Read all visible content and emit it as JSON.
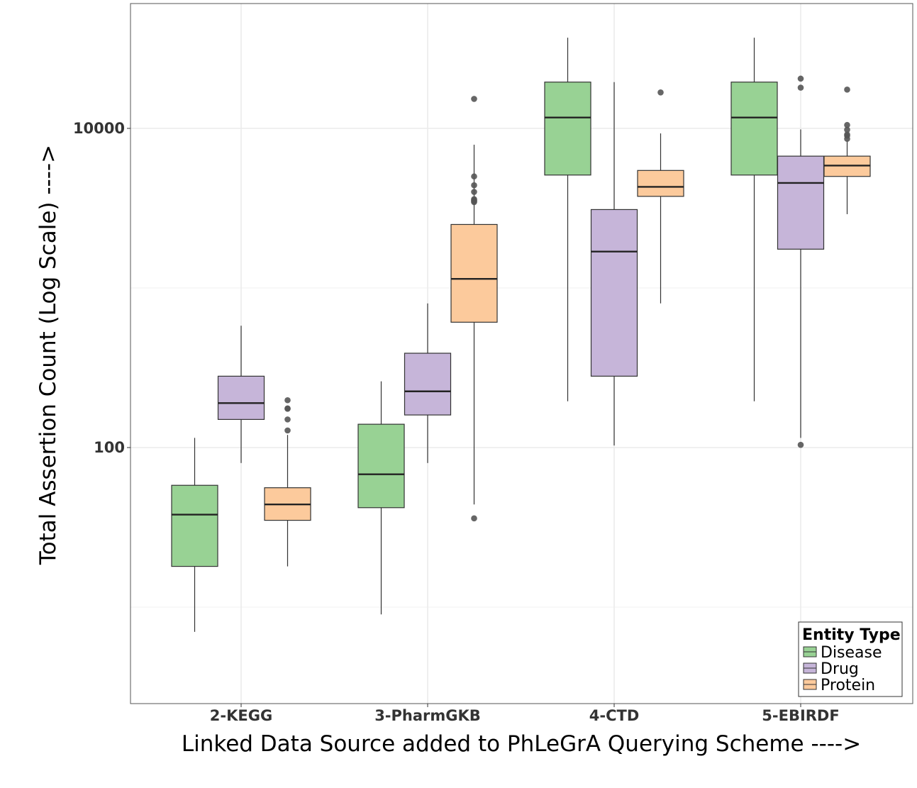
{
  "chart_data": {
    "type": "box",
    "title": "",
    "xlabel": "Linked Data Source added to PhLeGrA Querying Scheme ---->",
    "ylabel": "Total Assertion Count (Log Scale) ---->",
    "y_scale": "log10",
    "ylim": [
      5,
      50000
    ],
    "y_ticks": [
      100,
      10000
    ],
    "y_tick_labels": [
      "100",
      "10000"
    ],
    "grid": true,
    "categories": [
      "2-KEGG",
      "3-PharmGKB",
      "4-CTD",
      "5-EBIRDF"
    ],
    "legend": {
      "title": "Entity Type",
      "position": "bottom-right",
      "entries": [
        "Disease",
        "Drug",
        "Protein"
      ]
    },
    "colors": {
      "Disease": "#98d294",
      "Drug": "#c6b5d9",
      "Protein": "#fcca9c",
      "outline": "#333333",
      "grid": "#ebebeb",
      "outlier": "#555555"
    },
    "series": [
      {
        "name": "Disease",
        "boxes": [
          {
            "category": "2-KEGG",
            "min": 7,
            "q1": 18,
            "median": 38,
            "q3": 58,
            "max": 115,
            "outliers": []
          },
          {
            "category": "3-PharmGKB",
            "min": 9,
            "q1": 42,
            "median": 68,
            "q3": 140,
            "max": 260,
            "outliers": []
          },
          {
            "category": "4-CTD",
            "min": 195,
            "q1": 5100,
            "median": 11700,
            "q3": 19500,
            "max": 37000,
            "outliers": []
          },
          {
            "category": "5-EBIRDF",
            "min": 195,
            "q1": 5100,
            "median": 11700,
            "q3": 19500,
            "max": 37000,
            "outliers": []
          }
        ]
      },
      {
        "name": "Drug",
        "boxes": [
          {
            "category": "2-KEGG",
            "min": 80,
            "q1": 150,
            "median": 190,
            "q3": 280,
            "max": 580,
            "outliers": []
          },
          {
            "category": "3-PharmGKB",
            "min": 80,
            "q1": 160,
            "median": 225,
            "q3": 390,
            "max": 800,
            "outliers": []
          },
          {
            "category": "4-CTD",
            "min": 103,
            "q1": 280,
            "median": 1690,
            "q3": 3100,
            "max": 19500,
            "outliers": []
          },
          {
            "category": "5-EBIRDF",
            "min": 115,
            "q1": 1750,
            "median": 4550,
            "q3": 6700,
            "max": 9850,
            "outliers": [
              104,
              18000,
              20500
            ]
          }
        ]
      },
      {
        "name": "Protein",
        "boxes": [
          {
            "category": "2-KEGG",
            "min": 18,
            "q1": 35,
            "median": 44,
            "q3": 56,
            "max": 120,
            "outliers": [
              128,
              150,
              175,
              176,
              198
            ]
          },
          {
            "category": "3-PharmGKB",
            "min": 44,
            "q1": 610,
            "median": 1140,
            "q3": 2500,
            "max": 7900,
            "outliers": [
              36,
              3450,
              3500,
              3550,
              3600,
              4000,
              4400,
              5000,
              15300
            ]
          },
          {
            "category": "4-CTD",
            "min": 800,
            "q1": 3750,
            "median": 4300,
            "q3": 5450,
            "max": 9300,
            "outliers": [
              16800
            ]
          },
          {
            "category": "5-EBIRDF",
            "min": 2900,
            "q1": 5000,
            "median": 5850,
            "q3": 6700,
            "max": 8450,
            "outliers": [
              8600,
              9000,
              9150,
              9800,
              10500,
              17500
            ]
          }
        ]
      }
    ]
  }
}
